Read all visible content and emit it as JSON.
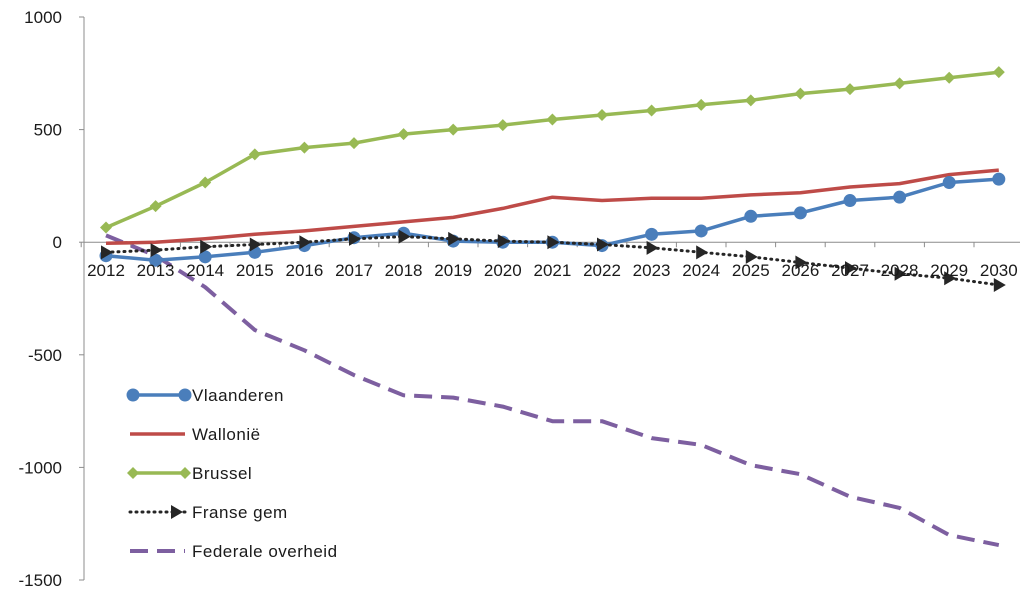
{
  "chart_data": {
    "type": "line",
    "title": "",
    "xlabel": "",
    "ylabel": "",
    "ylim": [
      -1500,
      1000
    ],
    "yticks": [
      1000,
      500,
      0,
      -500,
      -1000,
      -1500
    ],
    "x": [
      "2012",
      "2013",
      "2014",
      "2015",
      "2016",
      "2017",
      "2018",
      "2019",
      "2020",
      "2021",
      "2022",
      "2023",
      "2024",
      "2025",
      "2026",
      "2027",
      "2028",
      "2029",
      "2030"
    ],
    "grid": false,
    "legend_position": "bottom-left inside",
    "series": [
      {
        "name": "Vlaanderen",
        "color": "#4a7ebb",
        "style": "solid",
        "marker": "circle",
        "values": [
          -60,
          -80,
          -65,
          -45,
          -15,
          20,
          40,
          5,
          0,
          0,
          -15,
          35,
          50,
          115,
          130,
          185,
          200,
          265,
          280
        ]
      },
      {
        "name": "Wallonië",
        "color": "#be4b48",
        "style": "solid",
        "marker": "none",
        "values": [
          -5,
          0,
          15,
          35,
          50,
          70,
          90,
          110,
          150,
          200,
          185,
          195,
          195,
          210,
          220,
          245,
          260,
          300,
          320
        ]
      },
      {
        "name": "Brussel",
        "color": "#98b954",
        "style": "solid",
        "marker": "diamond",
        "values": [
          65,
          160,
          265,
          390,
          420,
          440,
          480,
          500,
          520,
          545,
          565,
          585,
          610,
          630,
          660,
          680,
          705,
          730,
          755
        ]
      },
      {
        "name": "Franse gem",
        "color": "#262626",
        "style": "dotted",
        "marker": "triangle",
        "values": [
          -45,
          -35,
          -20,
          -10,
          0,
          15,
          25,
          15,
          5,
          0,
          -10,
          -25,
          -45,
          -65,
          -90,
          -115,
          -140,
          -160,
          -190
        ]
      },
      {
        "name": "Federale overheid",
        "color": "#7d5fa0",
        "style": "dashed",
        "marker": "none",
        "values": [
          30,
          -60,
          -200,
          -390,
          -480,
          -590,
          -680,
          -690,
          -730,
          -795,
          -795,
          -870,
          -900,
          -990,
          -1030,
          -1130,
          -1180,
          -1300,
          -1345
        ]
      }
    ]
  }
}
